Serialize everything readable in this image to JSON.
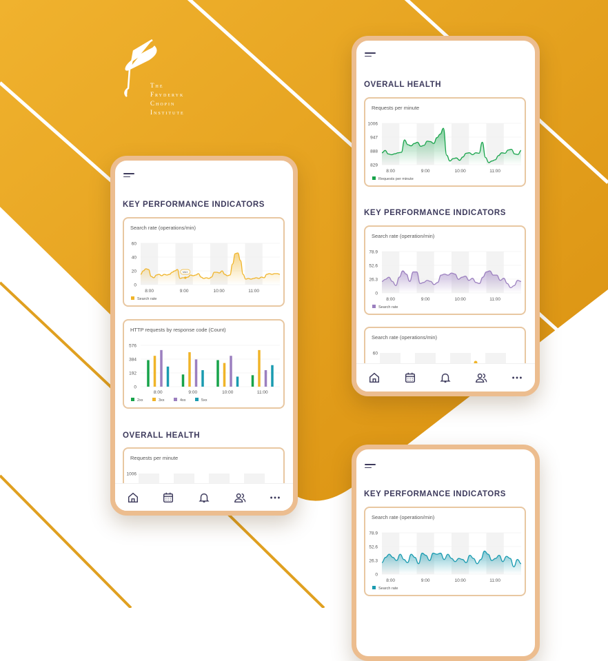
{
  "colors": {
    "background": "#e9a620",
    "frame": "#ecbd8f",
    "heading": "#3d3a5c",
    "yellow": "#f0b429",
    "green": "#17a34a",
    "purple": "#9b7fbf",
    "teal": "#1a9bb0",
    "bar_2xx": "#17a34a",
    "bar_3xx": "#f0b429",
    "bar_4xx": "#9b7fbf",
    "bar_5xx": "#1a9bb0"
  },
  "logo": {
    "lines": [
      "The",
      "Fryderyk",
      "Chopin",
      "Institute"
    ]
  },
  "nav_icons": [
    "home-icon",
    "calendar-icon",
    "bell-icon",
    "users-icon",
    "more-icon"
  ],
  "phone1": {
    "heading_kpi": "KEY PERFORMANCE INDICATORS",
    "heading_health": "OVERALL HEALTH",
    "search_rate": {
      "type": "area",
      "title": "Search rate (operations/min)",
      "legend": "Search rate",
      "color": "#f0b429",
      "yticks": [
        "0",
        "20",
        "40",
        "60"
      ],
      "ylim": [
        0,
        60
      ],
      "xticks": [
        "8:00",
        "9:00",
        "10:00",
        "11:00"
      ],
      "x_range": [
        "7:45",
        "11:45"
      ],
      "tooltip": "MAX",
      "values": [
        15,
        20,
        23,
        22,
        12,
        10,
        14,
        15,
        13,
        15,
        14,
        15,
        18,
        20,
        22,
        9,
        10,
        10,
        11,
        14,
        13,
        14,
        16,
        11,
        9,
        10,
        9,
        11,
        18,
        18,
        17,
        20,
        15,
        13,
        14,
        30,
        45,
        46,
        35,
        15,
        8,
        9,
        8,
        9,
        10,
        9,
        11,
        10,
        15,
        16,
        15,
        16,
        16,
        15
      ]
    },
    "http": {
      "type": "bar",
      "title": "HTTP requests by response code (Count)",
      "yticks": [
        "0",
        "192",
        "384",
        "576"
      ],
      "ylim": [
        0,
        576
      ],
      "categories": [
        "8:00",
        "9:00",
        "10:00",
        "11:00"
      ],
      "series": [
        {
          "name": "2xx",
          "values": [
            370,
            170,
            370,
            160
          ]
        },
        {
          "name": "3xx",
          "values": [
            430,
            480,
            330,
            510
          ]
        },
        {
          "name": "4xx",
          "values": [
            510,
            380,
            430,
            230
          ]
        },
        {
          "name": "5xx",
          "values": [
            280,
            230,
            140,
            300
          ]
        }
      ]
    },
    "requests_partial": {
      "title": "Requests per minute",
      "ytick_top": "1006"
    }
  },
  "phone2": {
    "heading_health": "OVERALL HEALTH",
    "heading_kpi": "KEY PERFORMANCE INDICATORS",
    "requests": {
      "type": "area",
      "title": "Requests per minute",
      "legend": "Requests per minute",
      "color": "#17a34a",
      "yticks": [
        "829",
        "888",
        "947",
        "1006"
      ],
      "ylim": [
        829,
        1006
      ],
      "xticks": [
        "8:00",
        "9:00",
        "10:00",
        "11:00"
      ],
      "x_range": [
        "7:45",
        "11:45"
      ],
      "values": [
        880,
        890,
        875,
        872,
        876,
        880,
        882,
        935,
        915,
        910,
        920,
        925,
        908,
        912,
        930,
        928,
        920,
        945,
        960,
        985,
        870,
        845,
        855,
        858,
        848,
        862,
        878,
        880,
        872,
        880,
        878,
        925,
        860,
        838,
        845,
        850,
        868,
        880,
        878,
        892,
        895,
        875,
        873,
        890
      ]
    },
    "search_rate": {
      "type": "area",
      "title": "Search rate (operation/min)",
      "legend": "Search rate",
      "color": "#9b7fbf",
      "yticks": [
        "0",
        "26.3",
        "52.6",
        "78.9"
      ],
      "ylim": [
        0,
        78.9
      ],
      "xticks": [
        "8:00",
        "9:00",
        "10:00",
        "11:00"
      ],
      "x_range": [
        "7:45",
        "11:45"
      ],
      "values": [
        22,
        26,
        30,
        22,
        14,
        30,
        42,
        36,
        22,
        40,
        40,
        18,
        20,
        24,
        22,
        16,
        20,
        34,
        36,
        34,
        38,
        36,
        26,
        30,
        32,
        24,
        28,
        20,
        18,
        30,
        40,
        42,
        34,
        34,
        24,
        28,
        18,
        10,
        14,
        24,
        22
      ]
    },
    "search_partial": {
      "title": "Search rate (operations/min)",
      "ytick_top": "60"
    }
  },
  "phone3": {
    "heading_kpi": "KEY PERFORMANCE INDICATORS",
    "search_rate": {
      "type": "area",
      "title": "Search rate (operation/min)",
      "legend": "Search rate",
      "color": "#1a9bb0",
      "yticks": [
        "0",
        "26.3",
        "52.6",
        "78.9"
      ],
      "ylim": [
        0,
        78.9
      ],
      "xticks": [
        "8:00",
        "9:00",
        "10:00",
        "11:00"
      ],
      "x_range": [
        "7:45",
        "11:45"
      ],
      "values": [
        22,
        32,
        38,
        32,
        26,
        38,
        28,
        22,
        38,
        32,
        20,
        40,
        36,
        26,
        40,
        38,
        40,
        28,
        38,
        30,
        24,
        30,
        28,
        22,
        36,
        30,
        20,
        28,
        44,
        38,
        26,
        30,
        36,
        24,
        34,
        30,
        14,
        28,
        20
      ]
    }
  }
}
